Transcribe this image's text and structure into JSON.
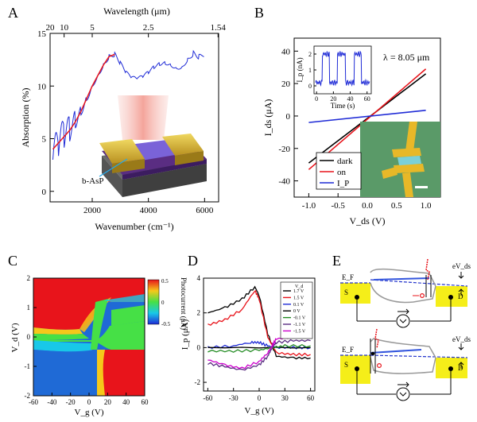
{
  "panels": {
    "a": "A",
    "b": "B",
    "c": "C",
    "d": "D",
    "e": "E"
  },
  "colors": {
    "black": "#000000",
    "red": "#e8141b",
    "blue": "#1f2bd6",
    "green": "#228b22",
    "magenta": "#cc00cc",
    "purple": "#5a2d82",
    "gold": "#d8b830",
    "yellow_band": "#f5ee19",
    "gray_band": "#9a9a9a"
  },
  "chart_data": [
    {
      "id": "A",
      "type": "line",
      "xlabel": "Wavenumber (cm⁻¹)",
      "ylabel": "Absorption (%)",
      "top_xlabel": "Wavelength (μm)",
      "xlim": [
        500,
        6500
      ],
      "ylim": [
        -1,
        15
      ],
      "x_ticks": [
        "2000",
        "4000",
        "6000"
      ],
      "y_ticks": [
        "0",
        "5",
        "10",
        "15"
      ],
      "top_ticks": [
        {
          "label": "20",
          "wavenumber": 500
        },
        {
          "label": "10",
          "wavenumber": 1000
        },
        {
          "label": "5",
          "wavenumber": 2000
        },
        {
          "label": "2.5",
          "wavenumber": 4000
        },
        {
          "label": "1.54",
          "wavenumber": 6494
        }
      ],
      "inset_label": "b-AsP",
      "series": [
        {
          "name": "measured",
          "color": "blue",
          "x": [
            600,
            800,
            1000,
            1200,
            1400,
            1600,
            1800,
            2000,
            2200,
            2400,
            2600,
            2800,
            3000,
            3200,
            3400,
            3600,
            3800,
            4000,
            4200,
            4400,
            4600,
            4800,
            5000,
            5200,
            5400,
            5600,
            5800,
            6000
          ],
          "y": [
            3.0,
            4.1,
            5.2,
            5.8,
            6.6,
            7.6,
            8.8,
            10.0,
            11.0,
            12.0,
            12.8,
            13.0,
            12.2,
            11.3,
            10.8,
            10.7,
            10.9,
            11.3,
            11.8,
            12.1,
            12.2,
            12.0,
            11.7,
            11.8,
            12.5,
            13.1,
            12.8,
            13.0
          ],
          "noise": [
            2.0,
            1.8,
            1.4,
            1.1,
            0.6,
            0.4,
            0.3,
            0.2,
            0.2,
            0.2,
            0.2,
            0.2,
            0.15,
            0.15,
            0.15,
            0.15,
            0.15,
            0.15,
            0.15,
            0.15,
            0.15,
            0.15,
            0.15,
            0.15,
            0.2,
            0.25,
            0.2,
            0.2
          ]
        },
        {
          "name": "fit",
          "color": "red",
          "x": [
            600,
            800,
            1000,
            1200,
            1400,
            1600,
            1800,
            2000,
            2200,
            2400,
            2600,
            2800
          ],
          "y": [
            4.0,
            4.6,
            5.2,
            5.8,
            6.6,
            7.6,
            8.8,
            10.0,
            11.0,
            12.0,
            12.8,
            13.0
          ]
        }
      ]
    },
    {
      "id": "B",
      "type": "line",
      "xlabel": "V_ds (V)",
      "ylabel": "I_ds (μA)",
      "xlim": [
        -1.25,
        1.25
      ],
      "ylim": [
        -50,
        48
      ],
      "x_ticks": [
        "-1.0",
        "-0.5",
        "0.0",
        "0.5",
        "1.0"
      ],
      "y_ticks": [
        "-40",
        "-20",
        "0",
        "20",
        "40"
      ],
      "annotation": "λ = 8.05 μm",
      "legend": [
        "dark",
        "on",
        "I_P"
      ],
      "series": [
        {
          "name": "dark",
          "color": "black",
          "x": [
            -1.0,
            1.0
          ],
          "y": [
            -29,
            26
          ]
        },
        {
          "name": "on",
          "color": "red",
          "x": [
            -1.0,
            1.0
          ],
          "y": [
            -33,
            29
          ]
        },
        {
          "name": "I_P",
          "color": "blue",
          "x": [
            -1.0,
            1.0
          ],
          "y": [
            -4,
            3.5
          ]
        }
      ],
      "inset": {
        "xlabel": "Time (s)",
        "ylabel": "I_p (nA)",
        "xlim": [
          -3,
          65
        ],
        "ylim": [
          -0.5,
          2.5
        ],
        "x_ticks": [
          "0",
          "20",
          "40",
          "60"
        ],
        "y_ticks": [
          "0",
          "1",
          "2"
        ],
        "on_intervals": [
          [
            7,
            15
          ],
          [
            25,
            34
          ],
          [
            45,
            53
          ]
        ],
        "high": 2.0,
        "low": 0.2
      }
    },
    {
      "id": "C",
      "type": "heatmap",
      "xlabel": "V_g (V)",
      "ylabel": "V_d (V)",
      "xlim": [
        -60,
        60
      ],
      "ylim": [
        -2,
        2
      ],
      "x_ticks": [
        "-60",
        "-40",
        "-20",
        "0",
        "20",
        "40",
        "60"
      ],
      "y_ticks": [
        "-2",
        "-1",
        "0",
        "1",
        "2"
      ],
      "colorbar": {
        "label": "Photocurrent (μA)",
        "ticks": [
          "0.5",
          "0",
          "-0.5"
        ],
        "range": [
          -0.5,
          0.5
        ]
      }
    },
    {
      "id": "D",
      "type": "line",
      "xlabel": "V_g (V)",
      "ylabel": "I_p (μA)",
      "xlim": [
        -65,
        65
      ],
      "ylim": [
        -2.5,
        4
      ],
      "x_ticks": [
        "-60",
        "-30",
        "0",
        "30",
        "60"
      ],
      "y_ticks": [
        "-2",
        "0",
        "2",
        "4"
      ],
      "legend_title": "V_d",
      "series": [
        {
          "name": "1.7 V",
          "color": "black",
          "x": [
            -60,
            -40,
            -20,
            -5,
            0,
            10,
            20,
            40,
            60
          ],
          "y": [
            2.0,
            2.3,
            2.8,
            3.5,
            3.0,
            0.8,
            -0.5,
            -0.6,
            -0.6
          ]
        },
        {
          "name": "1.5 V",
          "color": "red",
          "x": [
            -60,
            -40,
            -20,
            -5,
            0,
            10,
            20,
            40,
            60
          ],
          "y": [
            1.3,
            1.6,
            2.2,
            3.3,
            2.8,
            0.6,
            -0.3,
            -0.4,
            -0.4
          ]
        },
        {
          "name": "0.1 V",
          "color": "blue",
          "x": [
            -60,
            -30,
            -10,
            0,
            10,
            20,
            40,
            60
          ],
          "y": [
            0.0,
            0.1,
            0.3,
            0.3,
            0.1,
            0.0,
            0.0,
            0.0
          ]
        },
        {
          "name": "0 V",
          "color": "black",
          "x": [
            -60,
            60
          ],
          "y": [
            0.0,
            0.0
          ]
        },
        {
          "name": "-0.1 V",
          "color": "green",
          "x": [
            -60,
            -30,
            0,
            15,
            30,
            60
          ],
          "y": [
            -0.2,
            -0.2,
            -0.15,
            0.0,
            0.1,
            0.1
          ]
        },
        {
          "name": "-1.1 V",
          "color": "purple",
          "x": [
            -60,
            -40,
            -20,
            0,
            10,
            15,
            20,
            40,
            60
          ],
          "y": [
            -0.9,
            -1.1,
            -1.3,
            -1.0,
            -0.5,
            0.0,
            0.3,
            0.4,
            0.4
          ]
        },
        {
          "name": "-1.5 V",
          "color": "magenta",
          "x": [
            -60,
            -40,
            -20,
            0,
            10,
            15,
            20,
            40,
            60
          ],
          "y": [
            -0.7,
            -1.0,
            -1.2,
            -0.8,
            -0.3,
            0.1,
            0.5,
            0.6,
            0.6
          ]
        }
      ]
    }
  ],
  "panel_e": {
    "fermi_label": "E_F",
    "vds_label": "eV_ds",
    "source_label": "S",
    "drain_label": "D"
  }
}
